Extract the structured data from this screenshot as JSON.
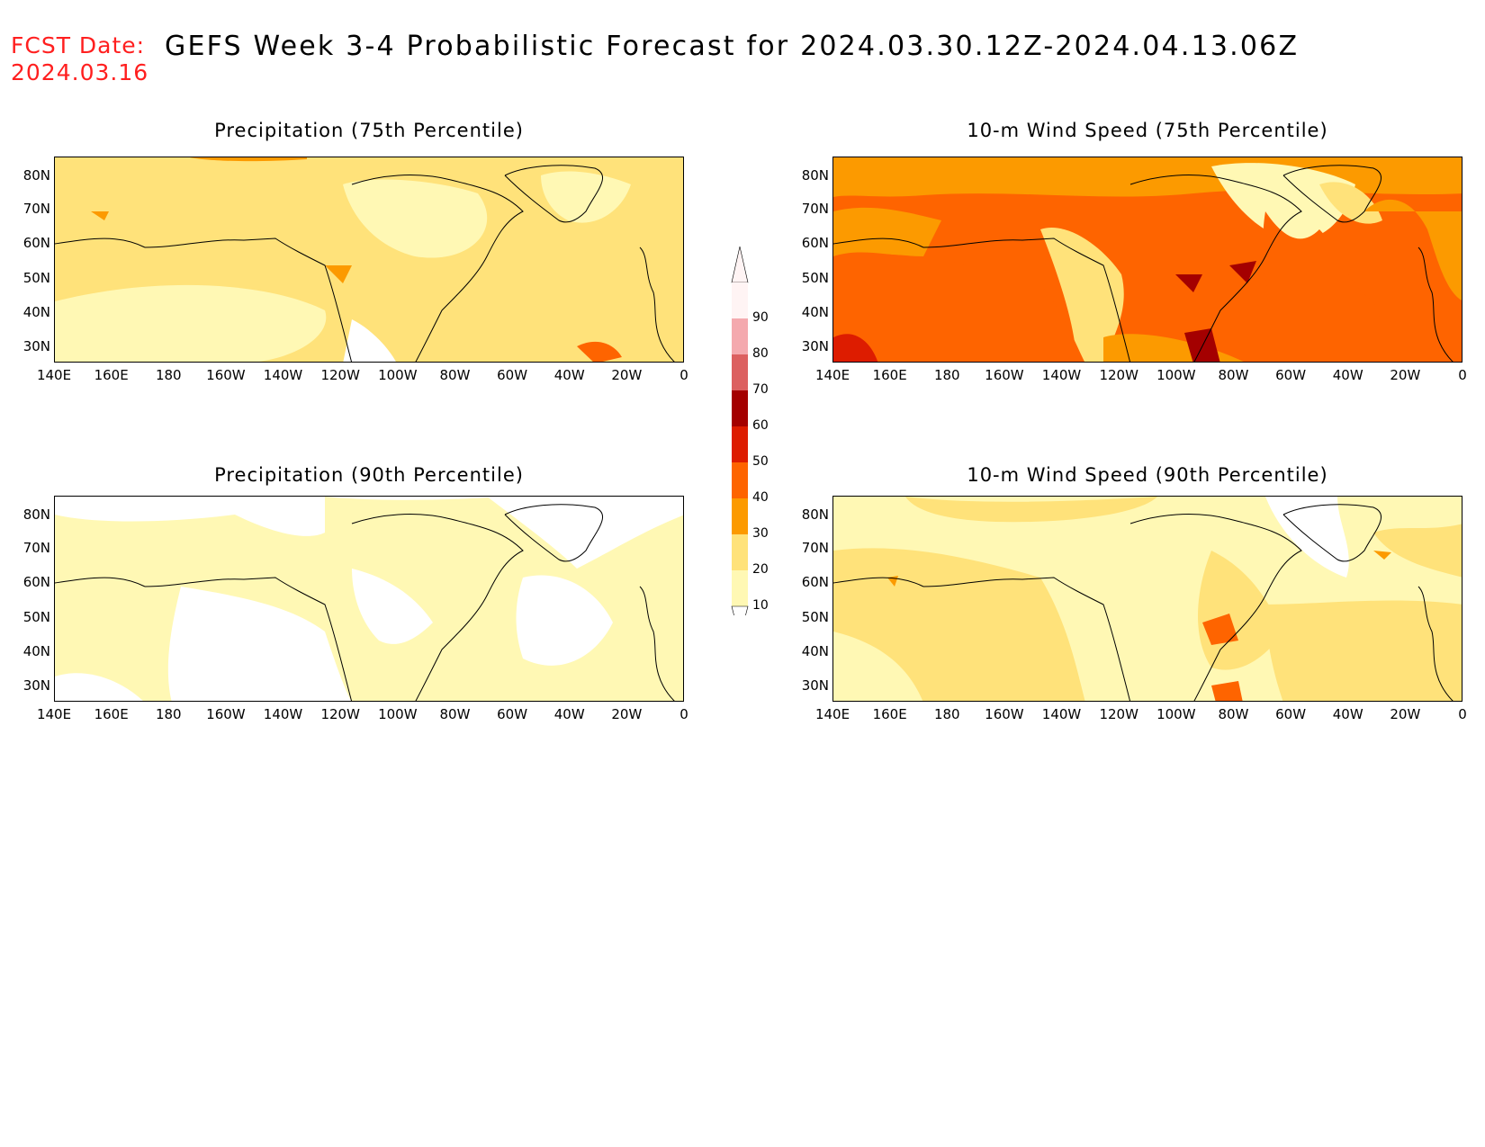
{
  "header": {
    "fcst_label": "FCST Date:",
    "fcst_date": "2024.03.16",
    "title": "GEFS Week 3-4 Probabilistic Forecast for 2024.03.30.12Z-2024.04.13.06Z"
  },
  "panels": [
    {
      "title": "Precipitation (75th Percentile)",
      "field": "precip75"
    },
    {
      "title": "10-m Wind Speed (75th Percentile)",
      "field": "wind75"
    },
    {
      "title": "Precipitation (90th Percentile)",
      "field": "precip90"
    },
    {
      "title": "10-m Wind Speed (90th Percentile)",
      "field": "wind90"
    }
  ],
  "lat_labels": [
    "80N",
    "70N",
    "60N",
    "50N",
    "40N",
    "30N"
  ],
  "lon_labels": [
    "140E",
    "160E",
    "180",
    "160W",
    "140W",
    "120W",
    "100W",
    "80W",
    "60W",
    "40W",
    "20W",
    "0"
  ],
  "colorbar": {
    "labels": [
      "90",
      "80",
      "70",
      "60",
      "50",
      "40",
      "30",
      "20",
      "10"
    ],
    "colors": [
      "#fff4f4",
      "#f4a9ae",
      "#dc6060",
      "#a40000",
      "#dd1c00",
      "#fe6400",
      "#fc9a00",
      "#ffe27a",
      "#fff8b4"
    ]
  }
}
